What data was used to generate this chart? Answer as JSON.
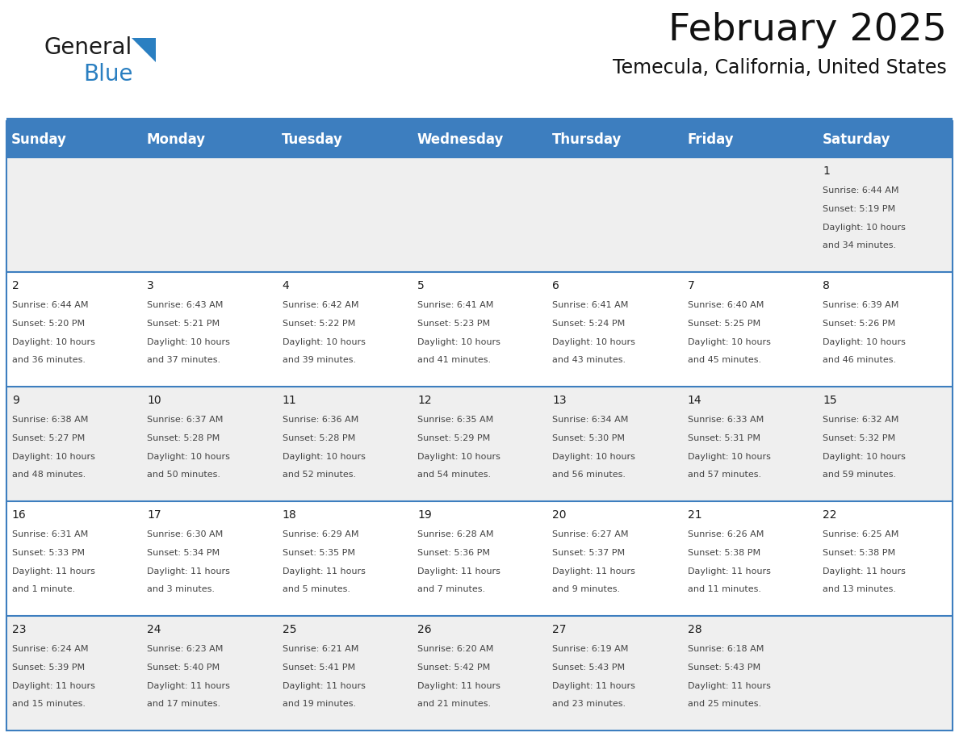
{
  "title": "February 2025",
  "subtitle": "Temecula, California, United States",
  "header_color": "#3D7EBF",
  "header_text_color": "#FFFFFF",
  "cell_bg_row0": "#EFEFEF",
  "cell_bg_row1": "#FFFFFF",
  "cell_bg_row2": "#EFEFEF",
  "cell_bg_row3": "#FFFFFF",
  "cell_bg_row4": "#EFEFEF",
  "day_headers": [
    "Sunday",
    "Monday",
    "Tuesday",
    "Wednesday",
    "Thursday",
    "Friday",
    "Saturday"
  ],
  "days": [
    {
      "day": 1,
      "col": 6,
      "row": 0,
      "sunrise": "6:44 AM",
      "sunset": "5:19 PM",
      "daylight": "10 hours and 34 minutes."
    },
    {
      "day": 2,
      "col": 0,
      "row": 1,
      "sunrise": "6:44 AM",
      "sunset": "5:20 PM",
      "daylight": "10 hours and 36 minutes."
    },
    {
      "day": 3,
      "col": 1,
      "row": 1,
      "sunrise": "6:43 AM",
      "sunset": "5:21 PM",
      "daylight": "10 hours and 37 minutes."
    },
    {
      "day": 4,
      "col": 2,
      "row": 1,
      "sunrise": "6:42 AM",
      "sunset": "5:22 PM",
      "daylight": "10 hours and 39 minutes."
    },
    {
      "day": 5,
      "col": 3,
      "row": 1,
      "sunrise": "6:41 AM",
      "sunset": "5:23 PM",
      "daylight": "10 hours and 41 minutes."
    },
    {
      "day": 6,
      "col": 4,
      "row": 1,
      "sunrise": "6:41 AM",
      "sunset": "5:24 PM",
      "daylight": "10 hours and 43 minutes."
    },
    {
      "day": 7,
      "col": 5,
      "row": 1,
      "sunrise": "6:40 AM",
      "sunset": "5:25 PM",
      "daylight": "10 hours and 45 minutes."
    },
    {
      "day": 8,
      "col": 6,
      "row": 1,
      "sunrise": "6:39 AM",
      "sunset": "5:26 PM",
      "daylight": "10 hours and 46 minutes."
    },
    {
      "day": 9,
      "col": 0,
      "row": 2,
      "sunrise": "6:38 AM",
      "sunset": "5:27 PM",
      "daylight": "10 hours and 48 minutes."
    },
    {
      "day": 10,
      "col": 1,
      "row": 2,
      "sunrise": "6:37 AM",
      "sunset": "5:28 PM",
      "daylight": "10 hours and 50 minutes."
    },
    {
      "day": 11,
      "col": 2,
      "row": 2,
      "sunrise": "6:36 AM",
      "sunset": "5:28 PM",
      "daylight": "10 hours and 52 minutes."
    },
    {
      "day": 12,
      "col": 3,
      "row": 2,
      "sunrise": "6:35 AM",
      "sunset": "5:29 PM",
      "daylight": "10 hours and 54 minutes."
    },
    {
      "day": 13,
      "col": 4,
      "row": 2,
      "sunrise": "6:34 AM",
      "sunset": "5:30 PM",
      "daylight": "10 hours and 56 minutes."
    },
    {
      "day": 14,
      "col": 5,
      "row": 2,
      "sunrise": "6:33 AM",
      "sunset": "5:31 PM",
      "daylight": "10 hours and 57 minutes."
    },
    {
      "day": 15,
      "col": 6,
      "row": 2,
      "sunrise": "6:32 AM",
      "sunset": "5:32 PM",
      "daylight": "10 hours and 59 minutes."
    },
    {
      "day": 16,
      "col": 0,
      "row": 3,
      "sunrise": "6:31 AM",
      "sunset": "5:33 PM",
      "daylight": "11 hours and 1 minute."
    },
    {
      "day": 17,
      "col": 1,
      "row": 3,
      "sunrise": "6:30 AM",
      "sunset": "5:34 PM",
      "daylight": "11 hours and 3 minutes."
    },
    {
      "day": 18,
      "col": 2,
      "row": 3,
      "sunrise": "6:29 AM",
      "sunset": "5:35 PM",
      "daylight": "11 hours and 5 minutes."
    },
    {
      "day": 19,
      "col": 3,
      "row": 3,
      "sunrise": "6:28 AM",
      "sunset": "5:36 PM",
      "daylight": "11 hours and 7 minutes."
    },
    {
      "day": 20,
      "col": 4,
      "row": 3,
      "sunrise": "6:27 AM",
      "sunset": "5:37 PM",
      "daylight": "11 hours and 9 minutes."
    },
    {
      "day": 21,
      "col": 5,
      "row": 3,
      "sunrise": "6:26 AM",
      "sunset": "5:38 PM",
      "daylight": "11 hours and 11 minutes."
    },
    {
      "day": 22,
      "col": 6,
      "row": 3,
      "sunrise": "6:25 AM",
      "sunset": "5:38 PM",
      "daylight": "11 hours and 13 minutes."
    },
    {
      "day": 23,
      "col": 0,
      "row": 4,
      "sunrise": "6:24 AM",
      "sunset": "5:39 PM",
      "daylight": "11 hours and 15 minutes."
    },
    {
      "day": 24,
      "col": 1,
      "row": 4,
      "sunrise": "6:23 AM",
      "sunset": "5:40 PM",
      "daylight": "11 hours and 17 minutes."
    },
    {
      "day": 25,
      "col": 2,
      "row": 4,
      "sunrise": "6:21 AM",
      "sunset": "5:41 PM",
      "daylight": "11 hours and 19 minutes."
    },
    {
      "day": 26,
      "col": 3,
      "row": 4,
      "sunrise": "6:20 AM",
      "sunset": "5:42 PM",
      "daylight": "11 hours and 21 minutes."
    },
    {
      "day": 27,
      "col": 4,
      "row": 4,
      "sunrise": "6:19 AM",
      "sunset": "5:43 PM",
      "daylight": "11 hours and 23 minutes."
    },
    {
      "day": 28,
      "col": 5,
      "row": 4,
      "sunrise": "6:18 AM",
      "sunset": "5:43 PM",
      "daylight": "11 hours and 25 minutes."
    }
  ],
  "num_rows": 5,
  "num_cols": 7,
  "logo_color_general": "#1a1a1a",
  "logo_color_blue": "#2A7FC1",
  "title_fontsize": 34,
  "subtitle_fontsize": 17,
  "header_fontsize": 12,
  "day_num_fontsize": 10,
  "info_fontsize": 8,
  "divider_color": "#3D7EBF",
  "line_color": "#3D7EBF"
}
